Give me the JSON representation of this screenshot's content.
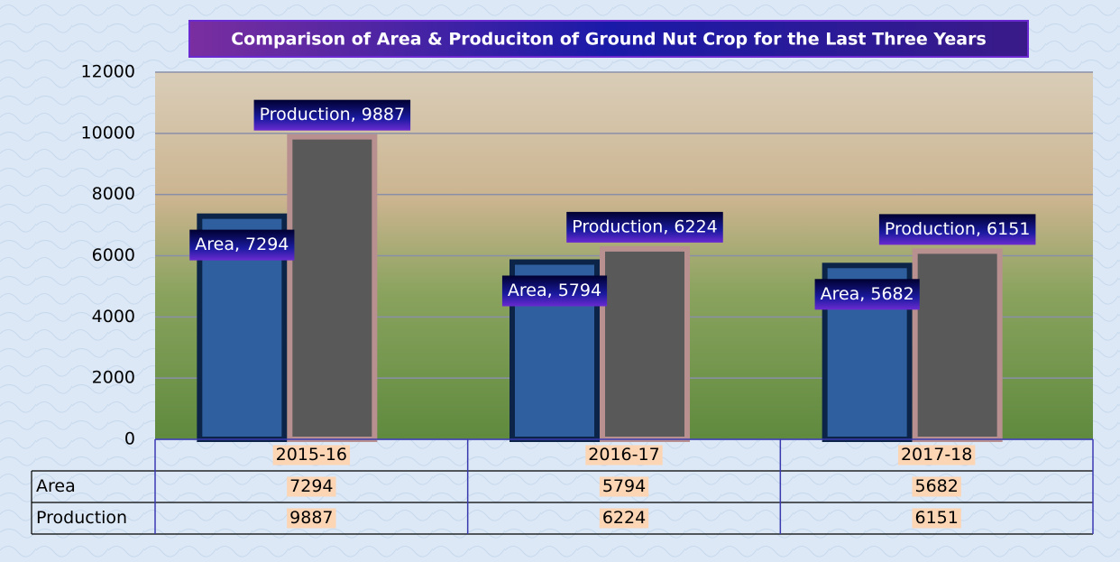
{
  "chart_data": {
    "type": "bar",
    "title": "Comparison of Area & Produciton of Ground Nut Crop  for the Last Three Years",
    "categories": [
      "2015-16",
      "2016-17",
      "2017-18"
    ],
    "series": [
      {
        "name": "Area",
        "color": "#2f5f9f",
        "values": [
          7294,
          5794,
          5682
        ],
        "value_labels": [
          "Area, 7294",
          "Area, 5794",
          "Area, 5682"
        ]
      },
      {
        "name": "Production",
        "color": "#595959",
        "values": [
          9887,
          6224,
          6151
        ],
        "value_labels": [
          "Production, 9887",
          "Production, 6224",
          "Production, 6151"
        ]
      }
    ],
    "ylim": [
      0,
      12000
    ],
    "yticks": [
      0,
      2000,
      4000,
      6000,
      8000,
      10000,
      12000
    ],
    "grid": true,
    "data_table": true
  }
}
